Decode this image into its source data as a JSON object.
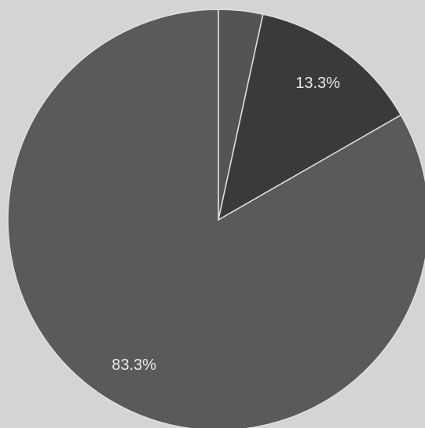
{
  "chart_data": {
    "type": "pie",
    "values": [
      3.4,
      13.3,
      83.3
    ],
    "value_labels": [
      null,
      "13.3%",
      "83.3%"
    ],
    "colors": [
      "#545454",
      "#3a3a3c",
      "#5a5a5c"
    ]
  }
}
